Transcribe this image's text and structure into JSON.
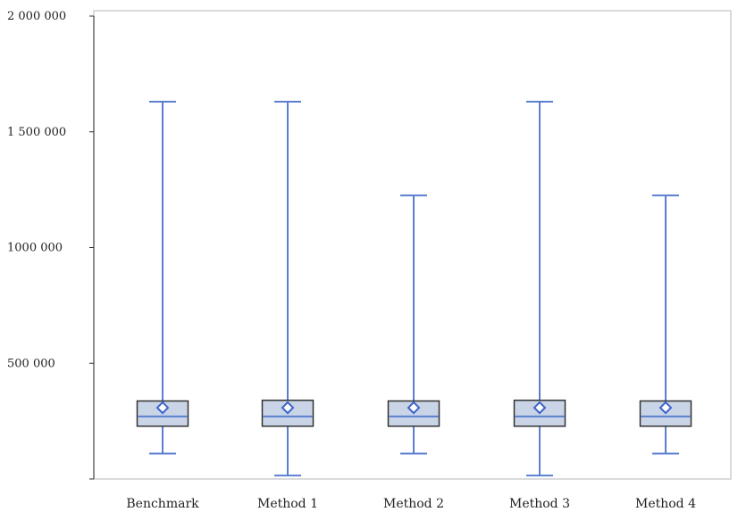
{
  "chart_data": {
    "type": "box",
    "categories": [
      "Benchmark",
      "Method 1",
      "Method 2",
      "Method 3",
      "Method 4"
    ],
    "boxes": [
      {
        "min": 110000,
        "q1": 228000,
        "median": 270000,
        "q3": 337000,
        "max": 1630000,
        "mean": 308000
      },
      {
        "min": 15000,
        "q1": 228000,
        "median": 270000,
        "q3": 340000,
        "max": 1630000,
        "mean": 308000
      },
      {
        "min": 110000,
        "q1": 228000,
        "median": 270000,
        "q3": 337000,
        "max": 1225000,
        "mean": 308000
      },
      {
        "min": 15000,
        "q1": 228000,
        "median": 270000,
        "q3": 340000,
        "max": 1630000,
        "mean": 308000
      },
      {
        "min": 110000,
        "q1": 228000,
        "median": 270000,
        "q3": 337000,
        "max": 1225000,
        "mean": 308000
      }
    ],
    "yticks": [
      500000,
      1000000,
      1500000,
      2000000
    ],
    "ytick_labels": [
      "500 000",
      "1000 000",
      "1 500 000",
      "2 000 000"
    ],
    "ylim": [
      0,
      2000000
    ],
    "grid": false,
    "colors": {
      "whisker": "#5b7fd0",
      "box_fill": "#c9d4e6",
      "box_edge": "#333333",
      "mean_marker": "#3d63c9"
    }
  }
}
